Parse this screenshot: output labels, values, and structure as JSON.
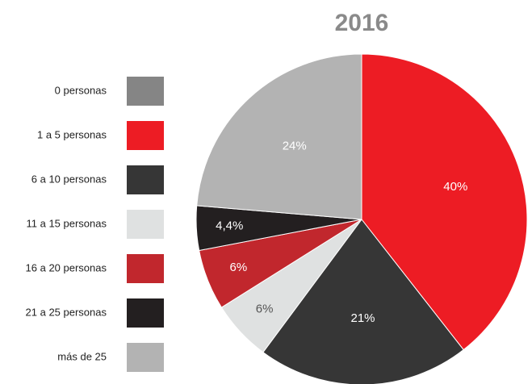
{
  "chart_data": {
    "type": "pie",
    "title": "2016",
    "categories": [
      "0 personas",
      "1 a 5 personas",
      "6 a 10 personas",
      "11 a 15 personas",
      "16 a 20 personas",
      "21 a 25 personas",
      "más de 25"
    ],
    "values": [
      0,
      40,
      21,
      6,
      6,
      4.4,
      24
    ],
    "value_labels": [
      null,
      "40%",
      "21%",
      "6%",
      "6%",
      "4,4%",
      "24%"
    ],
    "colors": [
      "#858585",
      "#ed1c24",
      "#363636",
      "#dfe1e1",
      "#c1272d",
      "#231f20",
      "#b3b3b3"
    ],
    "legend": "left"
  }
}
